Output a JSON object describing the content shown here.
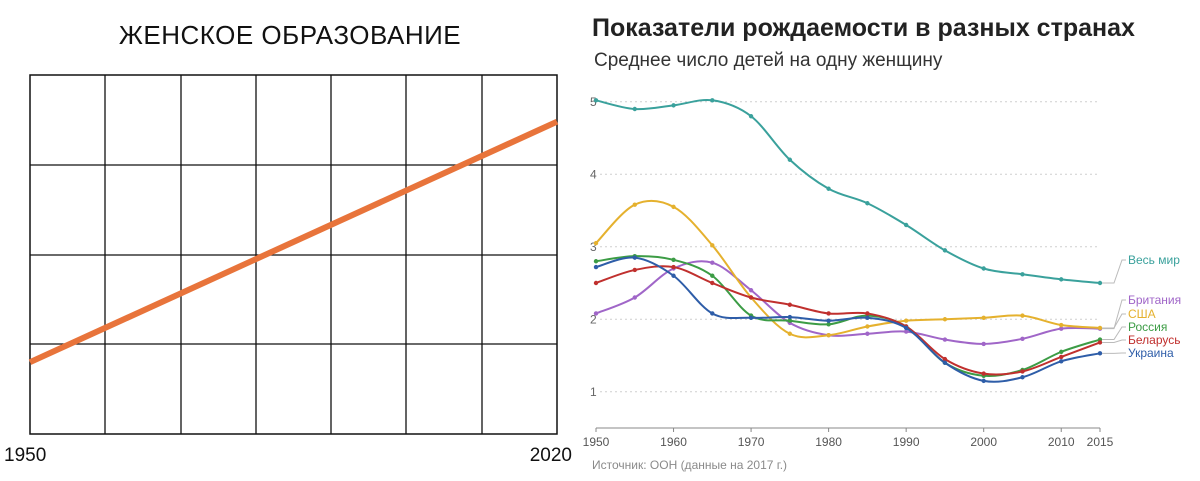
{
  "left_chart": {
    "title": "ЖЕНСКОЕ ОБРАЗОВАНИЕ",
    "x_start_label": "1950",
    "x_end_label": "2020",
    "line_color": "#e8743b"
  },
  "right_chart": {
    "title": "Показатели рождаемости в разных странах",
    "subtitle": "Среднее число детей на одну женщину",
    "source": "Источник: ООН (данные на 2017 г.)"
  },
  "chart_data": [
    {
      "type": "line",
      "title": "ЖЕНСКОЕ ОБРАЗОВАНИЕ",
      "x": [
        1950,
        2020
      ],
      "series": [
        {
          "values": [
            0.2,
            0.87
          ],
          "color": "#e8743b"
        }
      ],
      "xlim": [
        1950,
        2020
      ],
      "ylim": [
        0,
        1
      ],
      "x_tick_labels": [
        "1950",
        "2020"
      ],
      "grid": true
    },
    {
      "type": "line",
      "title": "Показатели рождаемости в разных странах",
      "subtitle": "Среднее число детей на одну женщину",
      "x": [
        1950,
        1955,
        1960,
        1965,
        1970,
        1975,
        1980,
        1985,
        1990,
        1995,
        2000,
        2005,
        2010,
        2015
      ],
      "xlim": [
        1950,
        2015
      ],
      "ylim": [
        0.5,
        5.3
      ],
      "x_ticks": [
        "1950",
        "1960",
        "1970",
        "1980",
        "1990",
        "2000",
        "2010",
        "2015"
      ],
      "y_ticks": [
        "1",
        "2",
        "3",
        "4",
        "5"
      ],
      "grid": true,
      "legend": "right, at line ends",
      "series": [
        {
          "name": "Весь мир",
          "color": "#3aa19c",
          "values": [
            5.02,
            4.9,
            4.95,
            5.02,
            4.8,
            4.2,
            3.8,
            3.6,
            3.3,
            2.95,
            2.7,
            2.62,
            2.55,
            2.5
          ]
        },
        {
          "name": "Британия",
          "color": "#a066c8",
          "values": [
            2.08,
            2.3,
            2.7,
            2.78,
            2.4,
            1.95,
            1.78,
            1.8,
            1.83,
            1.72,
            1.66,
            1.73,
            1.87,
            1.87
          ]
        },
        {
          "name": "США",
          "color": "#e5b12e",
          "values": [
            3.05,
            3.58,
            3.55,
            3.02,
            2.3,
            1.8,
            1.78,
            1.9,
            1.98,
            2.0,
            2.02,
            2.05,
            1.92,
            1.88
          ]
        },
        {
          "name": "Россия",
          "color": "#3c9c45",
          "values": [
            2.8,
            2.87,
            2.82,
            2.6,
            2.05,
            1.98,
            1.93,
            2.05,
            1.9,
            1.4,
            1.22,
            1.3,
            1.55,
            1.72
          ]
        },
        {
          "name": "Беларусь",
          "color": "#c0302e",
          "values": [
            2.5,
            2.68,
            2.72,
            2.5,
            2.3,
            2.2,
            2.08,
            2.08,
            1.9,
            1.45,
            1.25,
            1.28,
            1.48,
            1.68
          ]
        },
        {
          "name": "Украина",
          "color": "#2e5da8",
          "values": [
            2.72,
            2.85,
            2.6,
            2.08,
            2.02,
            2.03,
            1.98,
            2.02,
            1.88,
            1.4,
            1.15,
            1.2,
            1.42,
            1.53
          ]
        }
      ]
    }
  ]
}
